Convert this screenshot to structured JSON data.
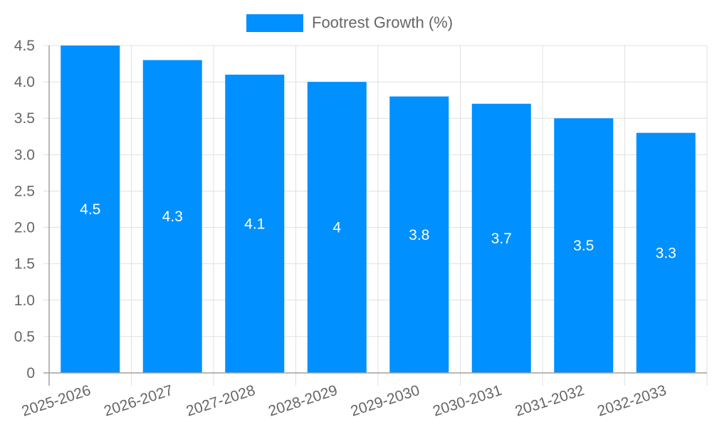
{
  "legend": {
    "label": "Footrest Growth (%)",
    "color": "#0090ff"
  },
  "colors": {
    "bar": "#0090ff",
    "grid": "#e0e0e0",
    "axis": "#a0a0a0",
    "tick_text": "#666666",
    "bar_label": "#ffffff"
  },
  "chart_data": {
    "type": "bar",
    "title": "",
    "xlabel": "",
    "ylabel": "",
    "categories": [
      "2025-2026",
      "2026-2027",
      "2027-2028",
      "2028-2029",
      "2029-2030",
      "2030-2031",
      "2031-2032",
      "2032-2033"
    ],
    "series": [
      {
        "name": "Footrest Growth (%)",
        "values": [
          4.5,
          4.3,
          4.1,
          4,
          3.8,
          3.7,
          3.5,
          3.3
        ]
      }
    ],
    "value_labels": [
      "4.5",
      "4.3",
      "4.1",
      "4",
      "3.8",
      "3.7",
      "3.5",
      "3.3"
    ],
    "ylim": [
      0,
      4.5
    ],
    "yticks": [
      "0",
      "0.5",
      "1.0",
      "1.5",
      "2.0",
      "2.5",
      "3.0",
      "3.5",
      "4.0",
      "4.5"
    ],
    "grid": true,
    "legend_position": "top"
  }
}
